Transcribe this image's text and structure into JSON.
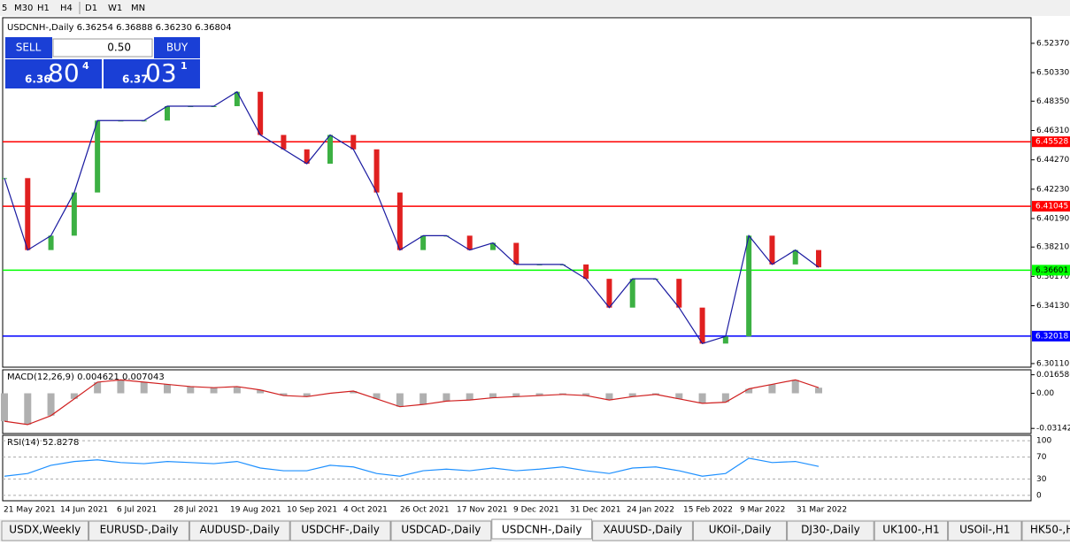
{
  "toolbar": [
    "5",
    "M30",
    "H1",
    "H4",
    "D1",
    "W1",
    "MN"
  ],
  "header": "USDCNH-,Daily 6.36254 6.36888 6.36230 6.36804",
  "trade_panel": {
    "sell": "SELL",
    "lot": "0.50",
    "buy": "BUY",
    "bid": {
      "big": "6.36",
      "main": "80",
      "small": "4"
    },
    "ask": {
      "big": "6.37",
      "main": "03",
      "small": "1"
    }
  },
  "chart": {
    "ylim": [
      6.2986,
      6.5415
    ],
    "yticks": [
      {
        "value": 6.5237,
        "label": "6.52370"
      },
      {
        "value": 6.5033,
        "label": "6.50330"
      },
      {
        "value": 6.4835,
        "label": "6.48350"
      },
      {
        "value": 6.4631,
        "label": "6.46310"
      },
      {
        "value": 6.4427,
        "label": "6.44270"
      },
      {
        "value": 6.4223,
        "label": "6.42230"
      },
      {
        "value": 6.4019,
        "label": "6.40190"
      },
      {
        "value": 6.3821,
        "label": "6.38210"
      },
      {
        "value": 6.3617,
        "label": "6.36170"
      },
      {
        "value": 6.3413,
        "label": "6.34130"
      },
      {
        "value": 6.3011,
        "label": "6.30110"
      }
    ],
    "levels": [
      {
        "value": 6.45528,
        "color": "#ff0000"
      },
      {
        "value": 6.41045,
        "color": "#ff0000"
      },
      {
        "value": 6.36601,
        "color": "#00ff00"
      },
      {
        "value": 6.32018,
        "color": "#0000ff"
      }
    ],
    "closes": [
      6.43,
      6.38,
      6.39,
      6.42,
      6.47,
      6.47,
      6.47,
      6.48,
      6.48,
      6.48,
      6.49,
      6.46,
      6.45,
      6.44,
      6.46,
      6.45,
      6.42,
      6.38,
      6.39,
      6.39,
      6.38,
      6.385,
      6.37,
      6.37,
      6.37,
      6.36,
      6.34,
      6.36,
      6.36,
      6.34,
      6.315,
      6.32,
      6.39,
      6.37,
      6.38,
      6.368
    ],
    "dates": [
      "21 May 2021",
      "14 Jun 2021",
      "6 Jul 2021",
      "28 Jul 2021",
      "19 Aug 2021",
      "10 Sep 2021",
      "4 Oct 2021",
      "26 Oct 2021",
      "17 Nov 2021",
      "9 Dec 2021",
      "31 Dec 2021",
      "24 Jan 2022",
      "15 Feb 2022",
      "9 Mar 2022",
      "31 Mar 2022"
    ]
  },
  "macd": {
    "label": "MACD(12,26,9) 0.004621 0.007043",
    "ylim": [
      -0.036,
      0.021
    ],
    "yticks": [
      {
        "value": 0.016586,
        "label": "0.016586"
      },
      {
        "value": 0,
        "label": "0.00"
      },
      {
        "value": -0.031421,
        "label": "-0.031421"
      }
    ],
    "values": [
      -0.025,
      -0.028,
      -0.02,
      -0.005,
      0.01,
      0.012,
      0.01,
      0.008,
      0.006,
      0.005,
      0.006,
      0.003,
      -0.002,
      -0.003,
      0.0,
      0.002,
      -0.005,
      -0.012,
      -0.01,
      -0.007,
      -0.006,
      -0.004,
      -0.003,
      -0.002,
      -0.001,
      -0.002,
      -0.006,
      -0.003,
      -0.001,
      -0.005,
      -0.009,
      -0.008,
      0.004,
      0.008,
      0.012,
      0.005
    ]
  },
  "rsi": {
    "label": "RSI(14) 52.8278",
    "ylim": [
      -10,
      110
    ],
    "yticks": [
      100,
      70,
      30,
      0
    ],
    "values": [
      35,
      40,
      55,
      62,
      65,
      60,
      58,
      62,
      60,
      58,
      62,
      50,
      45,
      45,
      55,
      52,
      40,
      35,
      45,
      48,
      45,
      50,
      45,
      48,
      52,
      45,
      40,
      50,
      52,
      45,
      35,
      40,
      68,
      60,
      62,
      53
    ]
  },
  "tabs": [
    "USDX,Weekly",
    "EURUSD-,Daily",
    "AUDUSD-,Daily",
    "USDCHF-,Daily",
    "USDCAD-,Daily",
    "USDCNH-,Daily",
    "XAUUSD-,Daily",
    "UKOil-,Daily",
    "DJ30-,Daily",
    "UK100-,H1",
    "USOil-,H1",
    "HK50-,H1"
  ],
  "active_tab": 5
}
